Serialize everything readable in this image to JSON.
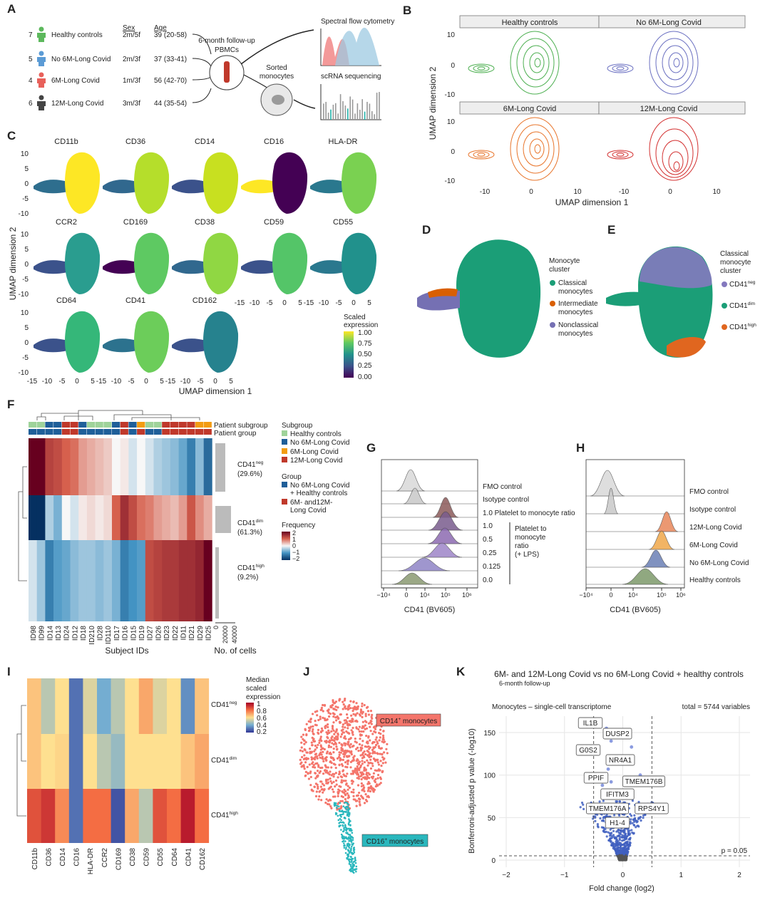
{
  "panels": {
    "A": {
      "letter": "A",
      "header_sex": "Sex",
      "header_age": "Age",
      "groups": [
        {
          "n": "7",
          "name": "Healthy controls",
          "sex": "2m/5f",
          "age": "39 (20-58)"
        },
        {
          "n": "5",
          "name": "No 6M-Long Covid",
          "sex": "2m/3f",
          "age": "37 (33-41)"
        },
        {
          "n": "4",
          "name": "6M-Long Covid",
          "sex": "1m/3f",
          "age": "56 (42-70)"
        },
        {
          "n": "6",
          "name": "12M-Long Covid",
          "sex": "3m/3f",
          "age": "44 (35-54)"
        }
      ],
      "followup": [
        "6-month follow-up",
        "PBMCs"
      ],
      "flow": "Spectral flow cytometry",
      "sorted": [
        "Sorted",
        "monocytes"
      ],
      "scrna": "scRNA sequencing"
    },
    "B": {
      "letter": "B",
      "facets": [
        "Healthy controls",
        "No 6M-Long Covid",
        "6M-Long Covid",
        "12M-Long Covid"
      ],
      "yticks": [
        "10",
        "0",
        "-10"
      ],
      "xticks": [
        "-10",
        "0",
        "10"
      ],
      "xlabel": "UMAP dimension 1",
      "ylabel": "UMAP dimension 2"
    },
    "C": {
      "letter": "C",
      "markers": [
        "CD11b",
        "CD36",
        "CD14",
        "CD16",
        "HLA-DR",
        "CCR2",
        "CD169",
        "CD38",
        "CD59",
        "CD55",
        "CD64",
        "CD41",
        "CD162"
      ],
      "yticks": [
        "10",
        "5",
        "0",
        "-5",
        "-10"
      ],
      "xticks": [
        "-15",
        "-10",
        "-5",
        "0",
        "5"
      ],
      "legend_title": [
        "Scaled",
        "expression"
      ],
      "legend_ticks": [
        "1.00",
        "0.75",
        "0.50",
        "0.25",
        "0.00"
      ],
      "xlabel": "UMAP dimension 1",
      "ylabel": "UMAP dimension 2"
    },
    "D": {
      "letter": "D",
      "legend_title": [
        "Monocyte",
        "cluster"
      ],
      "items": [
        [
          "Classical",
          "monocytes"
        ],
        [
          "Intermediate",
          "monocytes"
        ],
        [
          "Nonclassical",
          "monocytes"
        ]
      ]
    },
    "E": {
      "letter": "E",
      "legend_title": [
        "Classical",
        "monocyte",
        "cluster"
      ],
      "items": [
        {
          "main": "CD41",
          "sup": "neg"
        },
        {
          "main": "CD41",
          "sup": "dim"
        },
        {
          "main": "CD41",
          "sup": "high"
        }
      ]
    },
    "F": {
      "letter": "F",
      "bar_labels": [
        "Patient subgroup",
        "Patient group"
      ],
      "subgroup_title": "Subgroup",
      "subgroups": [
        "Healthy controls",
        "No 6M-Long Covid",
        "6M-Long Covid",
        "12M-Long Covid"
      ],
      "subgroup_colors": [
        "#9fd39a",
        "#1f5f99",
        "#f39c12",
        "#c0392b"
      ],
      "group_title": "Group",
      "groups": [
        [
          "No 6M-Long Covid",
          "+ Healthy controls"
        ],
        [
          "6M- and12M-",
          "Long Covid"
        ]
      ],
      "group_colors": [
        "#1f5f99",
        "#c0392b"
      ],
      "frequency_title": "Frequency",
      "frequency_ticks": [
        "2",
        "1",
        "0",
        "−1",
        "−2"
      ],
      "rows": [
        {
          "main": "CD41",
          "sup": "neg",
          "pct": "(29.6%)"
        },
        {
          "main": "CD41",
          "sup": "dim",
          "pct": "(61.3%)"
        },
        {
          "main": "CD41",
          "sup": "high",
          "pct": "(9.2%)"
        }
      ],
      "subjects": [
        "ID98",
        "ID99",
        "ID14",
        "ID13",
        "ID24",
        "ID12",
        "ID18",
        "ID210",
        "ID28",
        "ID110",
        "ID17",
        "ID16",
        "ID15",
        "ID19",
        "ID27",
        "ID26",
        "ID23",
        "ID22",
        "ID11",
        "ID21",
        "ID29",
        "ID25"
      ],
      "values": [
        [
          2,
          2,
          1.3,
          1.2,
          1,
          0.9,
          0.6,
          0.5,
          0.4,
          0.3,
          0,
          0.1,
          -0.2,
          0,
          -0.2,
          -0.4,
          -0.5,
          -0.6,
          -0.8,
          -1.2,
          -0.6,
          -1.4
        ],
        [
          -2,
          -2,
          -0.4,
          -0.7,
          0,
          -0.2,
          0.1,
          0.2,
          0.1,
          0.2,
          1,
          1.5,
          1.2,
          0.9,
          0.8,
          0.6,
          0.5,
          0.4,
          0.6,
          1.1,
          0.7,
          0.5
        ],
        [
          -0.2,
          -0.5,
          -1.2,
          -0.9,
          -0.8,
          -0.6,
          -0.5,
          -0.5,
          -0.6,
          -0.5,
          -0.7,
          -1.2,
          -1,
          -0.9,
          1.2,
          1.3,
          1.4,
          1.4,
          1.5,
          1.5,
          1.6,
          2
        ]
      ],
      "xlabel": "Subject IDs",
      "count_label": "No. of cells",
      "count_ticks": [
        "0",
        "20000",
        "40000"
      ]
    },
    "G": {
      "letter": "G",
      "rows": [
        "FMO control",
        "Isotype control",
        "1.0 Platelet to monocyte ratio",
        "1.0",
        "0.5",
        "0.25",
        "0.125",
        "0.0"
      ],
      "bracket": [
        "Platelet to",
        "monocyte",
        "ratio",
        "(+ LPS)"
      ],
      "xticks": [
        "−10⁴",
        "0",
        "10⁴",
        "10⁵",
        "10⁶"
      ],
      "xlabel": "CD41 (BV605)"
    },
    "H": {
      "letter": "H",
      "rows": [
        "FMO control",
        "Isotype control",
        "12M-Long Covid",
        "6M-Long Covid",
        "No 6M-Long Covid",
        "Healthy controls"
      ],
      "xticks": [
        "−10⁴",
        "0",
        "10⁴",
        "10⁵",
        "10⁶"
      ],
      "xlabel": "CD41 (BV605)"
    },
    "I": {
      "letter": "I",
      "columns": [
        "CD11b",
        "CD36",
        "CD14",
        "CD16",
        "HLA-DR",
        "CCR2",
        "CD169",
        "CD38",
        "CD59",
        "CD55",
        "CD64",
        "CD41",
        "CD162"
      ],
      "rows": [
        {
          "main": "CD41",
          "sup": "neg"
        },
        {
          "main": "CD41",
          "sup": "dim"
        },
        {
          "main": "CD41",
          "sup": "high"
        }
      ],
      "values": [
        [
          0.65,
          0.5,
          0.6,
          0.3,
          0.55,
          0.4,
          0.5,
          0.6,
          0.7,
          0.55,
          0.6,
          0.35,
          0.65
        ],
        [
          0.65,
          0.6,
          0.62,
          0.3,
          0.6,
          0.5,
          0.45,
          0.6,
          0.6,
          0.6,
          0.6,
          0.65,
          0.7
        ],
        [
          0.85,
          0.9,
          0.75,
          0.3,
          0.8,
          0.8,
          0.25,
          0.7,
          0.5,
          0.85,
          0.8,
          0.95,
          0.8
        ]
      ],
      "legend_title": [
        "Median",
        "scaled",
        "expression"
      ],
      "legend_ticks": [
        "1",
        "0.8",
        "0.6",
        "0.4",
        "0.2"
      ]
    },
    "J": {
      "letter": "J",
      "labels": [
        {
          "main": "CD14",
          "sup": "+",
          "rest": " monocytes"
        },
        {
          "main": "CD16",
          "sup": "+",
          "rest": " monocytes"
        }
      ]
    },
    "K": {
      "letter": "K",
      "title": "6M- and 12M-Long Covid vs no 6M-Long Covid + healthy controls",
      "subtitle": "6-month follow-up",
      "left_note": "Monocytes – single-cell transcriptome",
      "right_note": "total = 5744 variables",
      "genes": [
        "IL1B",
        "DUSP2",
        "G0S2",
        "NR4A1",
        "PPIF",
        "TMEM176B",
        "IFITM3",
        "TMEM176A",
        "RPS4Y1",
        "H1-4"
      ],
      "threshold": "p = 0.05",
      "yticks": [
        "0",
        "50",
        "100",
        "150"
      ],
      "xticks": [
        "−2",
        "−1",
        "0",
        "1",
        "2"
      ],
      "xlabel": "Fold change (log2)",
      "ylabel": "Bonferroni-adjusted p value (-log10)"
    }
  }
}
